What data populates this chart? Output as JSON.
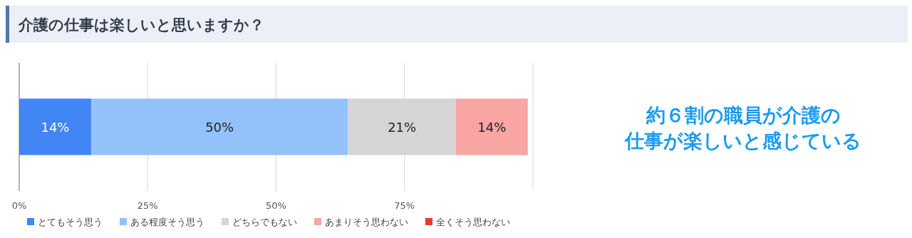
{
  "chart_data": {
    "type": "bar",
    "title": "介護の仕事は楽しいと思いますか？",
    "orientation": "horizontal",
    "stacked": true,
    "categories": [
      null
    ],
    "series": [
      {
        "name": "とてもそう思う",
        "color": "#4285f4",
        "values": [
          14
        ],
        "value_labels": [
          "14%"
        ]
      },
      {
        "name": "ある程度そう思う",
        "color": "#93c2fb",
        "values": [
          50
        ],
        "value_labels": [
          "50%"
        ]
      },
      {
        "name": "どちらでもない",
        "color": "#d5d5d8",
        "values": [
          21
        ],
        "value_labels": [
          "21%"
        ]
      },
      {
        "name": "あまりそう思わない",
        "color": "#f8a5a3",
        "values": [
          14
        ],
        "value_labels": [
          "14%"
        ]
      },
      {
        "name": "全くそう思わない",
        "color": "#e53935",
        "values": [
          0
        ],
        "value_labels": [
          null
        ]
      }
    ],
    "xlim": [
      0,
      100
    ],
    "xticks": [
      {
        "value": 0,
        "label": "0%"
      },
      {
        "value": 25,
        "label": "25%"
      },
      {
        "value": 50,
        "label": "50%"
      },
      {
        "value": 75,
        "label": "75%"
      },
      {
        "value": 100,
        "label": null
      }
    ],
    "grid": "x",
    "legend": "bottom",
    "annotations": [
      "約６割の職員が介護の",
      "仕事が楽しいと感じている"
    ]
  }
}
